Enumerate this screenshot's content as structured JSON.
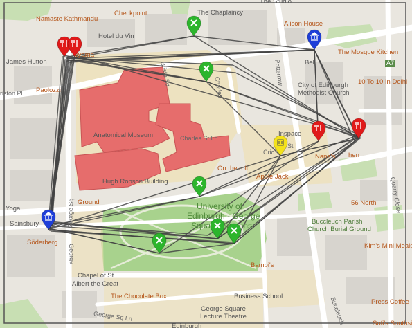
{
  "map": {
    "labels": {
      "namaste": "Namaste Kathmandu",
      "checkpoint": "Checkpoint",
      "chaplaincy": "The Chaplaincy",
      "studio": "The Studio",
      "alison": "Alison House",
      "hotel_du_vin": "Hotel du Vin",
      "vyama": "vyama",
      "james_hutton": "James Hutton",
      "paolozzi": "Paolozzi",
      "oriston": "riston Pl",
      "mosque_kitchen": "The Mosque Kitchen",
      "a7": "A7",
      "ten_to_ten": "10 To 10 In Delhi",
      "city_church_1": "City of Edinburgh",
      "city_church_2": "Methodist Church",
      "bell": "Bell",
      "anatomical": "Anatomical Museum",
      "charles_st": "Charles St Ln",
      "inspace": "Inspace",
      "crichton": "Cric",
      "crichton_st": "St",
      "nana": "Nana's",
      "chen": "hen",
      "on_the_roll": "On the roll",
      "apple": "Apple Jack",
      "hugh_robson": "Hugh Robson Building",
      "ground": "Ground",
      "sainsbury": "Sainsbury",
      "style_yoga": "Yoga",
      "soderberg": "Söderberg",
      "george_sq": "George Sq",
      "university_1": "University of",
      "university_2": "Edinburgh - George",
      "university_3": "Square Gardens",
      "fifty_six_north": "56 North",
      "quarry_close": "Quarry Close",
      "buccleuch_1": "Buccleuch Parish",
      "buccleuch_2": "Church Burial Ground",
      "kims": "Kim's Mini Meals",
      "bambis": "Bambi's",
      "chapel_1": "Chapel of St",
      "chapel_2": "Albert the Great",
      "business_school": "Business School",
      "chocolate_box": "The Chocolate Box",
      "gs_theatre_1": "George Square",
      "gs_theatre_2": "Lecture Theatre",
      "edinburgh": "Edinburgh",
      "george_sq_ln": "George Sq Ln",
      "press_coffee": "Press Coffee",
      "sofis": "Sofi's Southsid",
      "buccleuch_st": "Buccleuch",
      "charles_sq": "Charles",
      "potterrow": "Potterrow",
      "bristo_sq": "Bristo Sq",
      "george_sq_rd": "George"
    },
    "markers": [
      {
        "kind": "visited",
        "color": "#2cb52c"
      },
      {
        "kind": "visited",
        "color": "#2cb52c"
      },
      {
        "kind": "visited",
        "color": "#2cb52c"
      },
      {
        "kind": "visited",
        "color": "#2cb52c"
      },
      {
        "kind": "visited",
        "color": "#2cb52c"
      },
      {
        "kind": "visited",
        "color": "#2cb52c"
      },
      {
        "kind": "food",
        "color": "#e01a1a"
      },
      {
        "kind": "food",
        "color": "#e01a1a"
      },
      {
        "kind": "food",
        "color": "#e01a1a"
      },
      {
        "kind": "food",
        "color": "#e01a1a"
      },
      {
        "kind": "landmark",
        "color": "#1f3fd8"
      },
      {
        "kind": "landmark",
        "color": "#1f3fd8"
      },
      {
        "kind": "current",
        "color": "#f4e21a"
      }
    ]
  }
}
